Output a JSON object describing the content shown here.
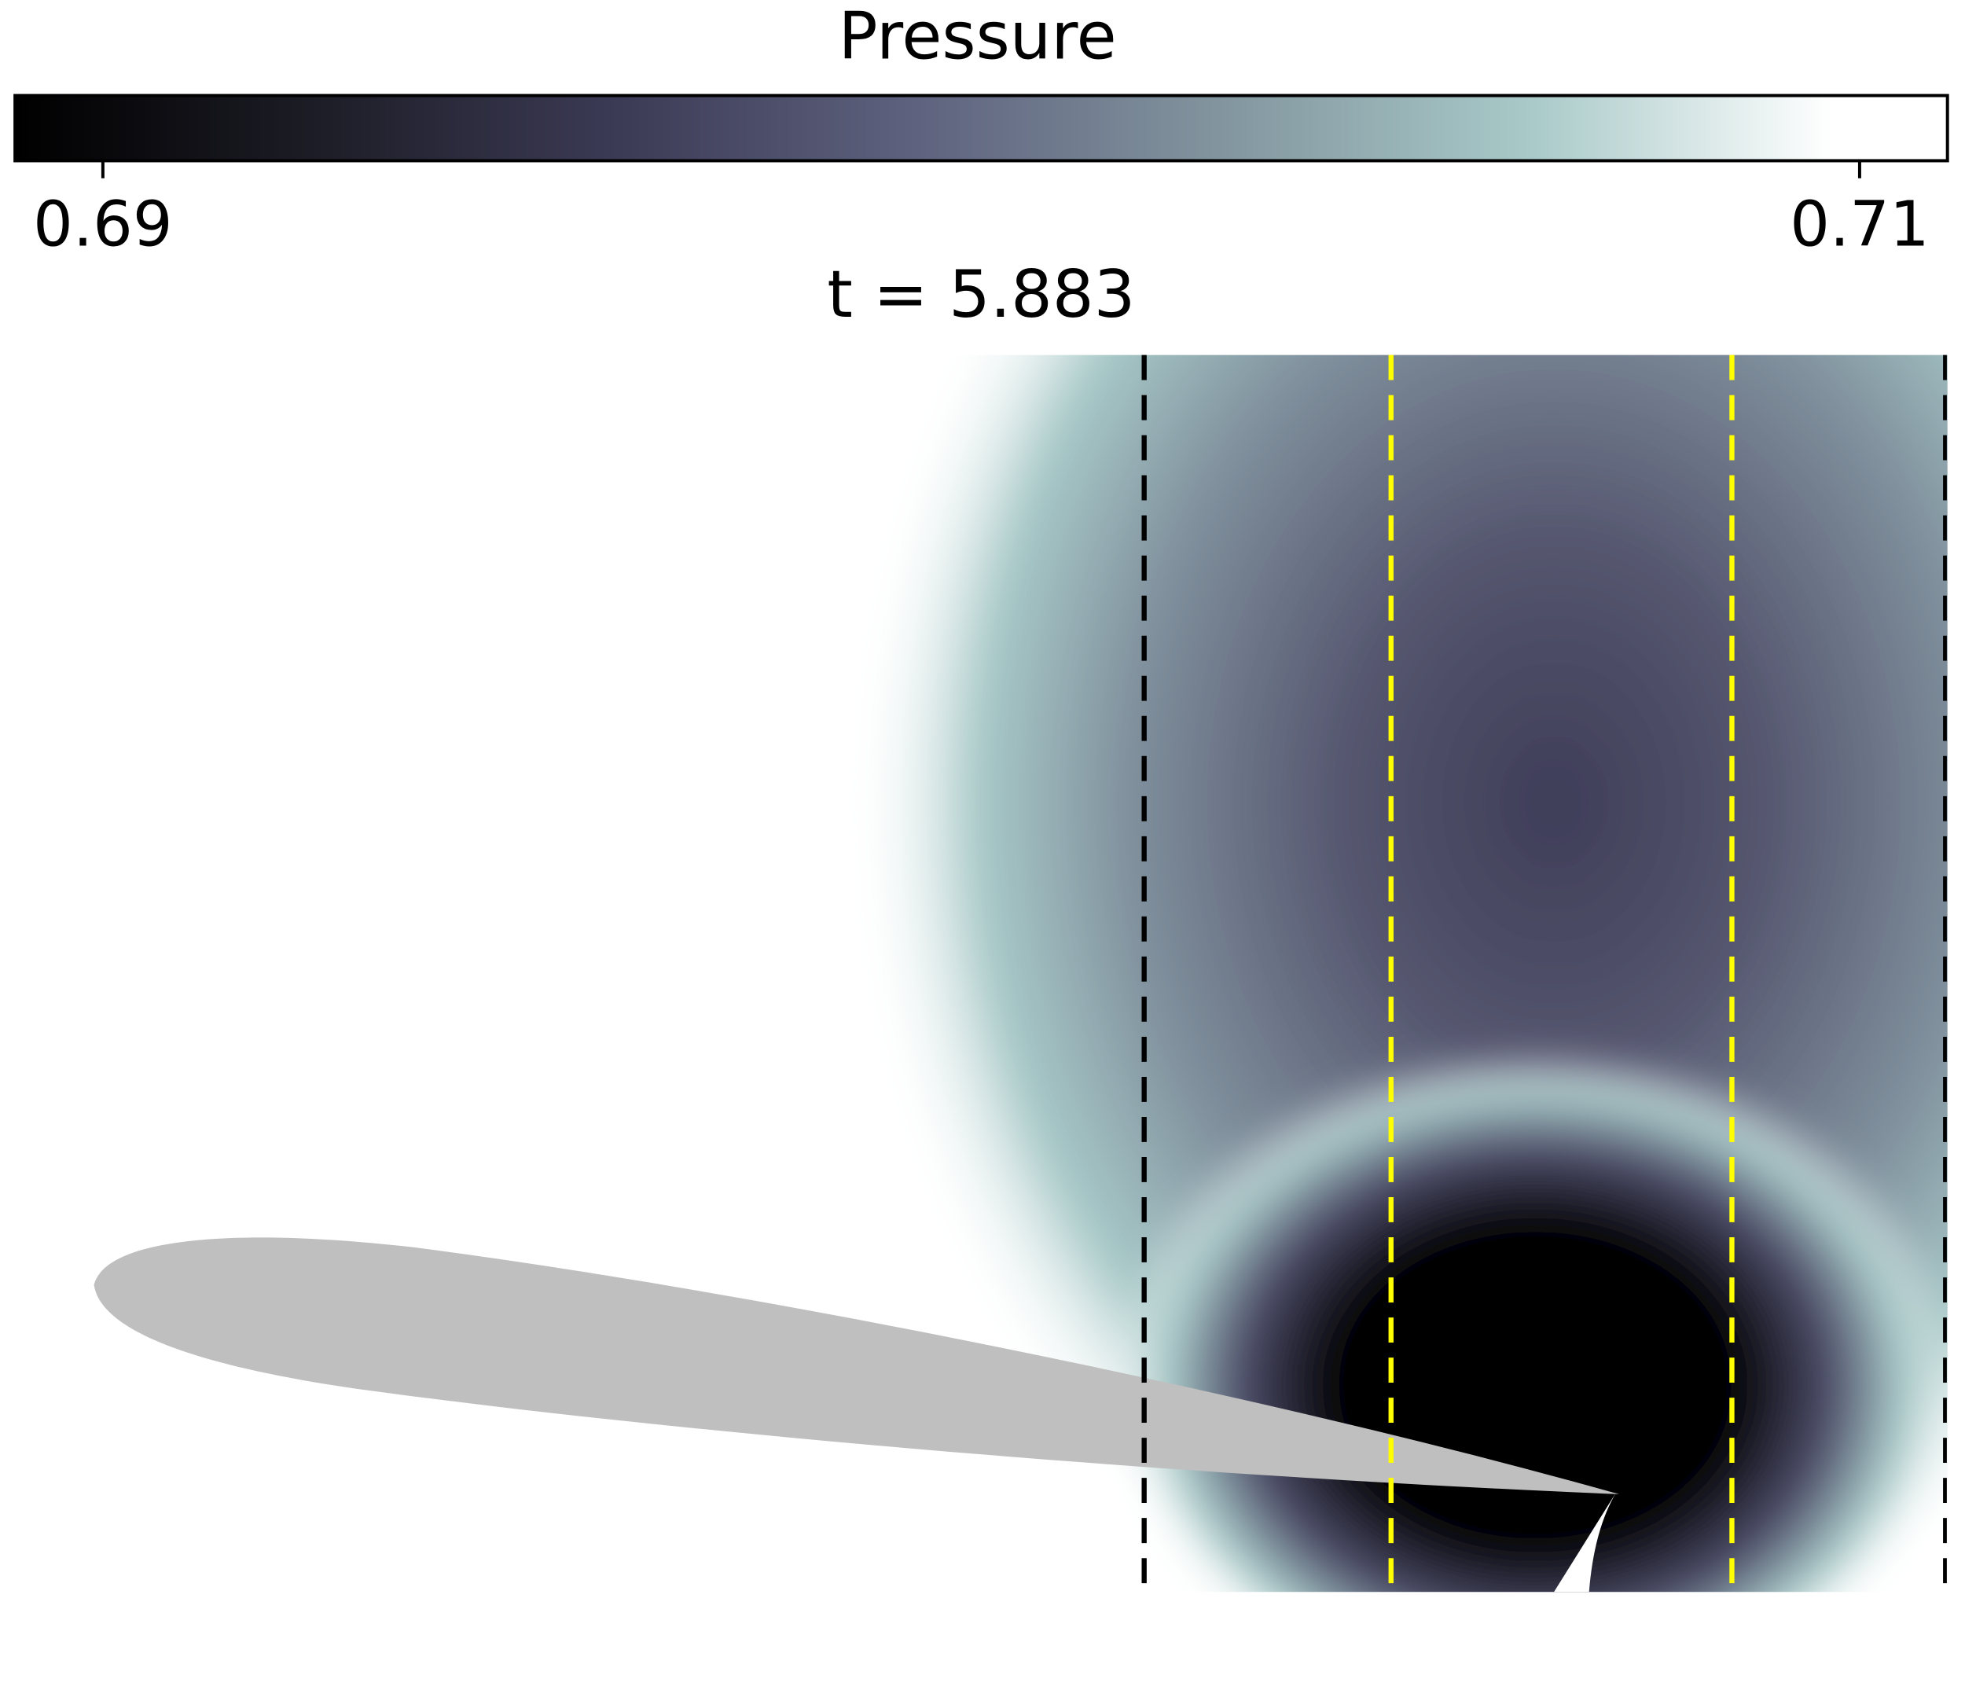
{
  "chart_data": {
    "type": "field",
    "title": "t = 5.883",
    "colorbar": {
      "label": "Pressure",
      "clim": [
        0.689,
        0.711
      ],
      "ticks": [
        0.69,
        0.71
      ],
      "colormap": [
        "#000000",
        "#1d1d27",
        "#3c3b56",
        "#5f637f",
        "#83969f",
        "#a8c9c8",
        "#ffffff"
      ]
    }
  }
}
